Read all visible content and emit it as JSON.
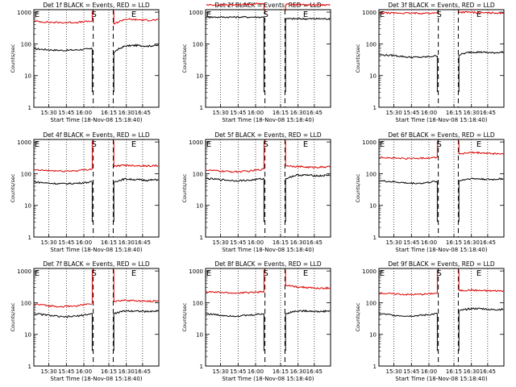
{
  "colors": {
    "events": "#000000",
    "lld": "#dd0000",
    "marker": "#000000",
    "background": "#ffffff"
  },
  "shared": {
    "xlabel": "Start Time (18-Nov-08 15:18:40)",
    "ylabel": "Counts/sec",
    "x_ticks": [
      "15:30",
      "15:45",
      "16:00",
      "16:15",
      "16:30",
      "16:45"
    ],
    "y_ticks": [
      "1",
      "10",
      "100",
      "1000"
    ],
    "y_scale": "log",
    "ylim": [
      1,
      1200
    ],
    "markers": [
      "S",
      "E"
    ]
  },
  "chart_data": [
    {
      "type": "line",
      "title": "Det 1f BLACK = Events, RED = LLD",
      "ylog": true,
      "series": [
        {
          "name": "Events",
          "segments": [
            [
              70,
              65,
              62,
              65,
              70
            ],
            [
              55,
              85,
              90,
              85,
              90
            ]
          ]
        },
        {
          "name": "LLD",
          "segments": [
            [
              520,
              480,
              470,
              480,
              520
            ],
            [
              420,
              600,
              580,
              560,
              570
            ]
          ]
        }
      ]
    },
    {
      "type": "line",
      "title": "Det 2f BLACK = Events, RED = LLD",
      "ylog": true,
      "series": [
        {
          "name": "Events",
          "segments": [
            [
              700,
              700,
              700,
              700,
              700
            ],
            [
              620,
              620,
              620,
              620,
              620
            ]
          ]
        },
        {
          "name": "LLD",
          "segments": [
            [
              1700,
              1700,
              1700,
              1800,
              1900
            ],
            [
              1750,
              1750,
              1700,
              1700,
              1700
            ]
          ]
        }
      ]
    },
    {
      "type": "line",
      "title": "Det 3f BLACK = Events, RED = LLD",
      "ylog": true,
      "series": [
        {
          "name": "Events",
          "segments": [
            [
              45,
              43,
              38,
              38,
              42
            ],
            [
              45,
              55,
              55,
              52,
              55
            ]
          ]
        },
        {
          "name": "LLD",
          "segments": [
            [
              950,
              940,
              930,
              930,
              940
            ],
            [
              1000,
              1000,
              950,
              950,
              950
            ]
          ]
        }
      ]
    },
    {
      "type": "line",
      "title": "Det 4f BLACK = Events, RED = LLD",
      "ylog": true,
      "series": [
        {
          "name": "Events",
          "segments": [
            [
              55,
              50,
              48,
              50,
              55
            ],
            [
              55,
              68,
              65,
              62,
              65
            ]
          ]
        },
        {
          "name": "LLD",
          "segments": [
            [
              130,
              125,
              120,
              125,
              140
            ],
            [
              170,
              185,
              180,
              175,
              180
            ]
          ]
        }
      ]
    },
    {
      "type": "line",
      "title": "Det 5f BLACK = Events, RED = LLD",
      "ylog": true,
      "series": [
        {
          "name": "Events",
          "segments": [
            [
              70,
              65,
              60,
              62,
              70
            ],
            [
              70,
              90,
              90,
              85,
              90
            ]
          ]
        },
        {
          "name": "LLD",
          "segments": [
            [
              130,
              120,
              115,
              120,
              140
            ],
            [
              180,
              170,
              160,
              160,
              165
            ]
          ]
        }
      ]
    },
    {
      "type": "line",
      "title": "Det 6f BLACK = Events, RED = LLD",
      "ylog": true,
      "series": [
        {
          "name": "Events",
          "segments": [
            [
              60,
              55,
              50,
              50,
              58
            ],
            [
              60,
              70,
              68,
              65,
              70
            ]
          ]
        },
        {
          "name": "LLD",
          "segments": [
            [
              330,
              310,
              300,
              310,
              330
            ],
            [
              420,
              460,
              450,
              430,
              420
            ]
          ]
        }
      ]
    },
    {
      "type": "line",
      "title": "Det 7f BLACK = Events, RED = LLD",
      "ylog": true,
      "series": [
        {
          "name": "Events",
          "segments": [
            [
              45,
              40,
              35,
              38,
              45
            ],
            [
              45,
              55,
              55,
              52,
              55
            ]
          ]
        },
        {
          "name": "LLD",
          "segments": [
            [
              90,
              80,
              75,
              80,
              95
            ],
            [
              110,
              120,
              115,
              110,
              115
            ]
          ]
        }
      ]
    },
    {
      "type": "line",
      "title": "Det 8f BLACK = Events, RED = LLD",
      "ylog": true,
      "series": [
        {
          "name": "Events",
          "segments": [
            [
              45,
              40,
              38,
              40,
              45
            ],
            [
              45,
              55,
              55,
              52,
              55
            ]
          ]
        },
        {
          "name": "LLD",
          "segments": [
            [
              220,
              210,
              200,
              210,
              220
            ],
            [
              350,
              320,
              300,
              280,
              290
            ]
          ]
        }
      ]
    },
    {
      "type": "line",
      "title": "Det 9f BLACK = Events, RED = LLD",
      "ylog": true,
      "series": [
        {
          "name": "Events",
          "segments": [
            [
              45,
              40,
              38,
              40,
              45
            ],
            [
              55,
              65,
              65,
              60,
              62
            ]
          ]
        },
        {
          "name": "LLD",
          "segments": [
            [
              200,
              190,
              180,
              185,
              200
            ],
            [
              240,
              250,
              240,
              235,
              240
            ]
          ]
        }
      ]
    }
  ]
}
